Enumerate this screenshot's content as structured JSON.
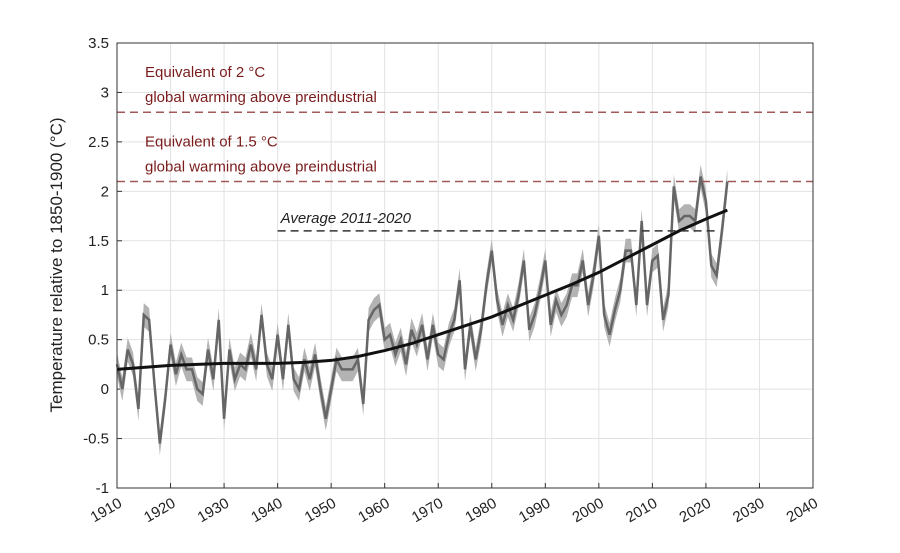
{
  "chart_data": {
    "type": "line",
    "y_label": "Temperature relative to 1850-1900 (°C)",
    "xlim": [
      1910,
      2040
    ],
    "xticks": [
      1910,
      1920,
      1930,
      1940,
      1950,
      1960,
      1970,
      1980,
      1990,
      2000,
      2010,
      2020,
      2030,
      2040
    ],
    "ylim": [
      -1,
      3.5
    ],
    "yticks": [
      -1,
      -0.5,
      0,
      0.5,
      1,
      1.5,
      2,
      2.5,
      3,
      3.5
    ],
    "grid": true,
    "series": [
      {
        "color": "#666666",
        "band_color": "#b3b3b3",
        "error": 0.12,
        "x": [
          1910,
          1911,
          1912,
          1913,
          1914,
          1915,
          1916,
          1917,
          1918,
          1919,
          1920,
          1921,
          1922,
          1923,
          1924,
          1925,
          1926,
          1927,
          1928,
          1929,
          1930,
          1931,
          1932,
          1933,
          1934,
          1935,
          1936,
          1937,
          1938,
          1939,
          1940,
          1941,
          1942,
          1943,
          1944,
          1945,
          1946,
          1947,
          1948,
          1949,
          1950,
          1951,
          1952,
          1953,
          1954,
          1955,
          1956,
          1957,
          1958,
          1959,
          1960,
          1961,
          1962,
          1963,
          1964,
          1965,
          1966,
          1967,
          1968,
          1969,
          1970,
          1971,
          1972,
          1973,
          1974,
          1975,
          1976,
          1977,
          1978,
          1979,
          1980,
          1981,
          1982,
          1983,
          1984,
          1985,
          1986,
          1987,
          1988,
          1989,
          1990,
          1991,
          1992,
          1993,
          1994,
          1995,
          1996,
          1997,
          1998,
          1999,
          2000,
          2001,
          2002,
          2003,
          2004,
          2005,
          2006,
          2007,
          2008,
          2009,
          2010,
          2011,
          2012,
          2013,
          2014,
          2015,
          2016,
          2017,
          2018,
          2019,
          2020,
          2021,
          2022,
          2023,
          2024
        ],
        "values": [
          0.25,
          0.0,
          0.4,
          0.25,
          -0.2,
          0.75,
          0.7,
          0.05,
          -0.55,
          -0.1,
          0.45,
          0.15,
          0.35,
          0.2,
          0.2,
          0.0,
          -0.05,
          0.4,
          0.1,
          0.7,
          -0.3,
          0.4,
          0.1,
          0.25,
          0.2,
          0.45,
          0.2,
          0.75,
          0.25,
          0.1,
          0.55,
          0.1,
          0.65,
          0.1,
          0.0,
          0.3,
          0.1,
          0.35,
          0.0,
          -0.3,
          0.0,
          0.3,
          0.2,
          0.2,
          0.2,
          0.3,
          -0.15,
          0.7,
          0.8,
          0.85,
          0.5,
          0.55,
          0.35,
          0.5,
          0.25,
          0.6,
          0.45,
          0.65,
          0.3,
          0.65,
          0.35,
          0.3,
          0.55,
          0.7,
          1.1,
          0.2,
          0.65,
          0.3,
          0.6,
          1.05,
          1.4,
          0.9,
          0.65,
          0.85,
          0.7,
          0.95,
          1.3,
          0.6,
          0.75,
          1.0,
          1.3,
          0.65,
          0.9,
          0.75,
          0.85,
          1.05,
          1.05,
          1.3,
          0.85,
          1.15,
          1.55,
          0.75,
          0.55,
          0.8,
          1.0,
          1.4,
          1.4,
          0.85,
          1.7,
          0.85,
          1.3,
          1.35,
          0.7,
          0.95,
          2.05,
          1.7,
          1.75,
          1.75,
          1.7,
          2.15,
          1.9,
          1.25,
          1.15,
          1.6,
          2.1
        ]
      },
      {
        "color": "#111111",
        "x": [
          1910,
          1915,
          1920,
          1925,
          1930,
          1935,
          1940,
          1945,
          1950,
          1955,
          1960,
          1965,
          1970,
          1975,
          1980,
          1985,
          1990,
          1995,
          2000,
          2005,
          2010,
          2015,
          2020,
          2024
        ],
        "values": [
          0.2,
          0.22,
          0.24,
          0.25,
          0.26,
          0.26,
          0.26,
          0.27,
          0.29,
          0.33,
          0.39,
          0.46,
          0.55,
          0.64,
          0.73,
          0.84,
          0.95,
          1.06,
          1.18,
          1.32,
          1.46,
          1.6,
          1.72,
          1.81
        ]
      }
    ],
    "reference_lines": [
      {
        "value": 2.8,
        "color": "#a05a5a",
        "text_color": "#7a1c1c",
        "label": [
          "Equivalent of 2 °C",
          "global warming above preindustrial"
        ]
      },
      {
        "value": 2.1,
        "color": "#a05a5a",
        "text_color": "#7a1c1c",
        "label": [
          "Equivalent of 1.5 °C",
          "global warming above preindustrial"
        ]
      }
    ],
    "average_line": {
      "value": 1.6,
      "from": 1940,
      "to": 2022,
      "color": "#333333",
      "label": "Average 2011-2020"
    }
  }
}
